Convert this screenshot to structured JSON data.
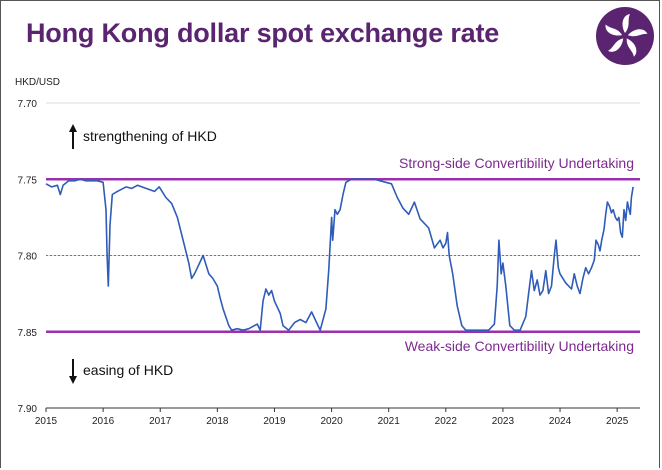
{
  "page": {
    "title": "Hong Kong dollar spot exchange rate",
    "logo_icon": "bauhinia-flower-icon",
    "accent_color": "#5a2470"
  },
  "chart_data": {
    "type": "line",
    "ylabel": "HKD/USD",
    "y_reversed": true,
    "ylim": [
      7.7,
      7.9
    ],
    "y_ticks": [
      "7.70",
      "7.75",
      "7.80",
      "7.85",
      "7.90"
    ],
    "xlim": [
      2015.0,
      2025.4
    ],
    "x_ticks": [
      "2015",
      "2016",
      "2017",
      "2018",
      "2019",
      "2020",
      "2021",
      "2022",
      "2023",
      "2024",
      "2025"
    ],
    "grid": "horizontal dotted",
    "reference_lines": [
      {
        "label": "Strong-side Convertibility Undertaking",
        "y": 7.75,
        "color": "#9b2fae"
      },
      {
        "label": "Weak-side Convertibility Undertaking",
        "y": 7.85,
        "color": "#9b2fae"
      },
      {
        "label": "",
        "y": 7.8,
        "color": "#777777"
      }
    ],
    "annotations": {
      "strengthening": "strengthening of HKD",
      "easing": "easing of HKD"
    },
    "series": [
      {
        "name": "",
        "color": "#2e5cb8",
        "points": [
          [
            2015.0,
            7.753
          ],
          [
            2015.1,
            7.755
          ],
          [
            2015.2,
            7.754
          ],
          [
            2015.25,
            7.76
          ],
          [
            2015.3,
            7.754
          ],
          [
            2015.4,
            7.751
          ],
          [
            2015.5,
            7.751
          ],
          [
            2015.6,
            7.75
          ],
          [
            2015.7,
            7.751
          ],
          [
            2015.8,
            7.751
          ],
          [
            2015.9,
            7.751
          ],
          [
            2016.0,
            7.752
          ],
          [
            2016.05,
            7.77
          ],
          [
            2016.07,
            7.8
          ],
          [
            2016.09,
            7.82
          ],
          [
            2016.12,
            7.78
          ],
          [
            2016.16,
            7.76
          ],
          [
            2016.25,
            7.758
          ],
          [
            2016.4,
            7.755
          ],
          [
            2016.5,
            7.756
          ],
          [
            2016.6,
            7.754
          ],
          [
            2016.75,
            7.756
          ],
          [
            2016.9,
            7.758
          ],
          [
            2016.98,
            7.755
          ],
          [
            2017.0,
            7.756
          ],
          [
            2017.1,
            7.762
          ],
          [
            2017.2,
            7.766
          ],
          [
            2017.3,
            7.775
          ],
          [
            2017.4,
            7.79
          ],
          [
            2017.5,
            7.805
          ],
          [
            2017.55,
            7.815
          ],
          [
            2017.6,
            7.812
          ],
          [
            2017.65,
            7.808
          ],
          [
            2017.75,
            7.8
          ],
          [
            2017.85,
            7.812
          ],
          [
            2017.92,
            7.815
          ],
          [
            2018.0,
            7.82
          ],
          [
            2018.05,
            7.828
          ],
          [
            2018.1,
            7.835
          ],
          [
            2018.2,
            7.846
          ],
          [
            2018.25,
            7.849
          ],
          [
            2018.35,
            7.848
          ],
          [
            2018.45,
            7.849
          ],
          [
            2018.55,
            7.848
          ],
          [
            2018.65,
            7.846
          ],
          [
            2018.7,
            7.845
          ],
          [
            2018.75,
            7.849
          ],
          [
            2018.8,
            7.83
          ],
          [
            2018.85,
            7.822
          ],
          [
            2018.9,
            7.826
          ],
          [
            2018.95,
            7.823
          ],
          [
            2019.0,
            7.83
          ],
          [
            2019.1,
            7.838
          ],
          [
            2019.15,
            7.846
          ],
          [
            2019.25,
            7.849
          ],
          [
            2019.35,
            7.844
          ],
          [
            2019.45,
            7.842
          ],
          [
            2019.55,
            7.844
          ],
          [
            2019.65,
            7.837
          ],
          [
            2019.75,
            7.845
          ],
          [
            2019.8,
            7.849
          ],
          [
            2019.9,
            7.835
          ],
          [
            2019.95,
            7.81
          ],
          [
            2019.98,
            7.79
          ],
          [
            2020.0,
            7.775
          ],
          [
            2020.02,
            7.79
          ],
          [
            2020.06,
            7.77
          ],
          [
            2020.1,
            7.773
          ],
          [
            2020.15,
            7.77
          ],
          [
            2020.2,
            7.76
          ],
          [
            2020.25,
            7.752
          ],
          [
            2020.35,
            7.75
          ],
          [
            2020.45,
            7.75
          ],
          [
            2020.55,
            7.75
          ],
          [
            2020.65,
            7.75
          ],
          [
            2020.75,
            7.75
          ],
          [
            2020.85,
            7.751
          ],
          [
            2020.95,
            7.752
          ],
          [
            2021.05,
            7.753
          ],
          [
            2021.15,
            7.762
          ],
          [
            2021.25,
            7.769
          ],
          [
            2021.35,
            7.773
          ],
          [
            2021.45,
            7.765
          ],
          [
            2021.55,
            7.776
          ],
          [
            2021.6,
            7.778
          ],
          [
            2021.7,
            7.782
          ],
          [
            2021.8,
            7.795
          ],
          [
            2021.9,
            7.79
          ],
          [
            2021.95,
            7.795
          ],
          [
            2022.0,
            7.792
          ],
          [
            2022.03,
            7.785
          ],
          [
            2022.06,
            7.8
          ],
          [
            2022.12,
            7.812
          ],
          [
            2022.2,
            7.833
          ],
          [
            2022.28,
            7.846
          ],
          [
            2022.35,
            7.849
          ],
          [
            2022.45,
            7.849
          ],
          [
            2022.55,
            7.849
          ],
          [
            2022.65,
            7.849
          ],
          [
            2022.75,
            7.849
          ],
          [
            2022.85,
            7.845
          ],
          [
            2022.9,
            7.82
          ],
          [
            2022.93,
            7.79
          ],
          [
            2022.97,
            7.812
          ],
          [
            2023.0,
            7.805
          ],
          [
            2023.05,
            7.82
          ],
          [
            2023.12,
            7.846
          ],
          [
            2023.2,
            7.849
          ],
          [
            2023.3,
            7.849
          ],
          [
            2023.4,
            7.84
          ],
          [
            2023.45,
            7.825
          ],
          [
            2023.5,
            7.81
          ],
          [
            2023.55,
            7.823
          ],
          [
            2023.6,
            7.816
          ],
          [
            2023.65,
            7.826
          ],
          [
            2023.7,
            7.823
          ],
          [
            2023.75,
            7.81
          ],
          [
            2023.8,
            7.825
          ],
          [
            2023.85,
            7.82
          ],
          [
            2023.9,
            7.8
          ],
          [
            2023.93,
            7.79
          ],
          [
            2023.97,
            7.808
          ],
          [
            2024.0,
            7.812
          ],
          [
            2024.1,
            7.818
          ],
          [
            2024.2,
            7.822
          ],
          [
            2024.25,
            7.812
          ],
          [
            2024.3,
            7.82
          ],
          [
            2024.35,
            7.825
          ],
          [
            2024.4,
            7.815
          ],
          [
            2024.45,
            7.808
          ],
          [
            2024.5,
            7.812
          ],
          [
            2024.55,
            7.808
          ],
          [
            2024.6,
            7.803
          ],
          [
            2024.63,
            7.79
          ],
          [
            2024.67,
            7.793
          ],
          [
            2024.7,
            7.797
          ],
          [
            2024.73,
            7.79
          ],
          [
            2024.77,
            7.783
          ],
          [
            2024.8,
            7.773
          ],
          [
            2024.83,
            7.765
          ],
          [
            2024.87,
            7.768
          ],
          [
            2024.9,
            7.772
          ],
          [
            2024.93,
            7.77
          ],
          [
            2024.97,
            7.775
          ],
          [
            2025.0,
            7.777
          ],
          [
            2025.03,
            7.775
          ],
          [
            2025.06,
            7.785
          ],
          [
            2025.09,
            7.788
          ],
          [
            2025.12,
            7.77
          ],
          [
            2025.15,
            7.777
          ],
          [
            2025.18,
            7.765
          ],
          [
            2025.21,
            7.77
          ],
          [
            2025.23,
            7.773
          ],
          [
            2025.25,
            7.762
          ],
          [
            2025.28,
            7.755
          ]
        ]
      }
    ]
  }
}
